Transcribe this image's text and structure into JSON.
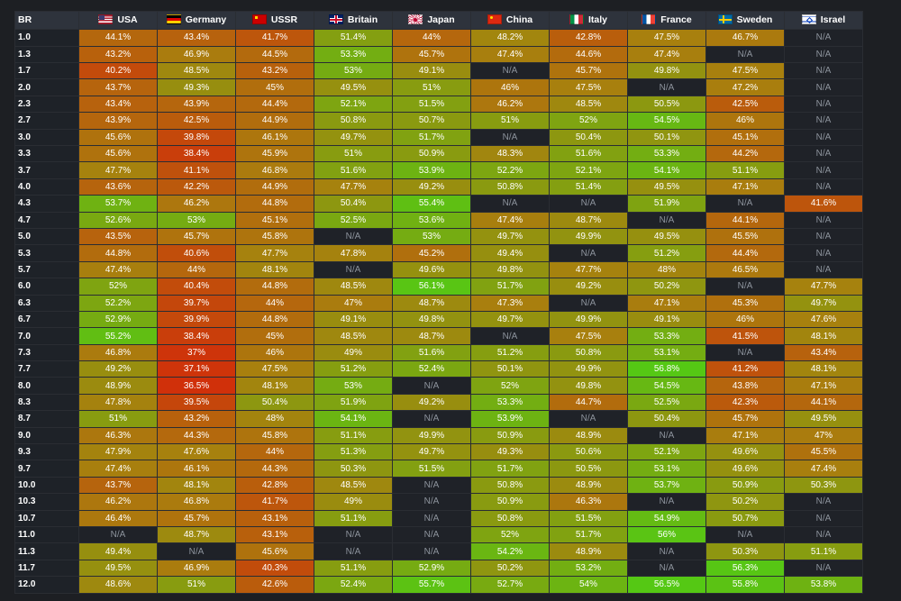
{
  "header": {
    "br_label": "BR",
    "countries": [
      {
        "name": "USA",
        "flag": "usa-flag-icon"
      },
      {
        "name": "Germany",
        "flag": "germany-flag-icon"
      },
      {
        "name": "USSR",
        "flag": "ussr-flag-icon"
      },
      {
        "name": "Britain",
        "flag": "britain-flag-icon"
      },
      {
        "name": "Japan",
        "flag": "japan-flag-icon"
      },
      {
        "name": "China",
        "flag": "china-flag-icon"
      },
      {
        "name": "Italy",
        "flag": "italy-flag-icon"
      },
      {
        "name": "France",
        "flag": "france-flag-icon"
      },
      {
        "name": "Sweden",
        "flag": "sweden-flag-icon"
      },
      {
        "name": "Israel",
        "flag": "israel-flag-icon"
      }
    ]
  },
  "colors": {
    "background": "#1d1f23",
    "na_cell": "#1f2228",
    "low": "#d0300a",
    "mid": "#a8800e",
    "high": "#55c814"
  },
  "rows": [
    {
      "br": "1.0",
      "values": [
        "44.1%",
        "43.4%",
        "41.7%",
        "51.4%",
        "44%",
        "48.2%",
        "42.8%",
        "47.5%",
        "46.7%",
        "N/A"
      ]
    },
    {
      "br": "1.3",
      "values": [
        "43.2%",
        "46.9%",
        "44.5%",
        "53.3%",
        "45.7%",
        "47.4%",
        "44.6%",
        "47.4%",
        "N/A",
        "N/A"
      ]
    },
    {
      "br": "1.7",
      "values": [
        "40.2%",
        "48.5%",
        "43.2%",
        "53%",
        "49.1%",
        "N/A",
        "45.7%",
        "49.8%",
        "47.5%",
        "N/A"
      ]
    },
    {
      "br": "2.0",
      "values": [
        "43.7%",
        "49.3%",
        "45%",
        "49.5%",
        "51%",
        "46%",
        "47.5%",
        "N/A",
        "47.2%",
        "N/A"
      ]
    },
    {
      "br": "2.3",
      "values": [
        "43.4%",
        "43.9%",
        "44.4%",
        "52.1%",
        "51.5%",
        "46.2%",
        "48.5%",
        "50.5%",
        "42.5%",
        "N/A"
      ]
    },
    {
      "br": "2.7",
      "values": [
        "43.9%",
        "42.5%",
        "44.9%",
        "50.8%",
        "50.7%",
        "51%",
        "52%",
        "54.5%",
        "46%",
        "N/A"
      ]
    },
    {
      "br": "3.0",
      "values": [
        "45.6%",
        "39.8%",
        "46.1%",
        "49.7%",
        "51.7%",
        "N/A",
        "50.4%",
        "50.1%",
        "45.1%",
        "N/A"
      ]
    },
    {
      "br": "3.3",
      "values": [
        "45.6%",
        "38.4%",
        "45.9%",
        "51%",
        "50.9%",
        "48.3%",
        "51.6%",
        "53.3%",
        "44.2%",
        "N/A"
      ]
    },
    {
      "br": "3.7",
      "values": [
        "47.7%",
        "41.1%",
        "46.8%",
        "51.6%",
        "53.9%",
        "52.2%",
        "52.1%",
        "54.1%",
        "51.1%",
        "N/A"
      ]
    },
    {
      "br": "4.0",
      "values": [
        "43.6%",
        "42.2%",
        "44.9%",
        "47.7%",
        "49.2%",
        "50.8%",
        "51.4%",
        "49.5%",
        "47.1%",
        "N/A"
      ]
    },
    {
      "br": "4.3",
      "values": [
        "53.7%",
        "46.2%",
        "44.8%",
        "50.4%",
        "55.4%",
        "N/A",
        "N/A",
        "51.9%",
        "N/A",
        "41.6%"
      ]
    },
    {
      "br": "4.7",
      "values": [
        "52.6%",
        "53%",
        "45.1%",
        "52.5%",
        "53.6%",
        "47.4%",
        "48.7%",
        "N/A",
        "44.1%",
        "N/A"
      ]
    },
    {
      "br": "5.0",
      "values": [
        "43.5%",
        "45.7%",
        "45.8%",
        "N/A",
        "53%",
        "49.7%",
        "49.9%",
        "49.5%",
        "45.5%",
        "N/A"
      ]
    },
    {
      "br": "5.3",
      "values": [
        "44.8%",
        "40.6%",
        "47.7%",
        "47.8%",
        "45.2%",
        "49.4%",
        "N/A",
        "51.2%",
        "44.4%",
        "N/A"
      ]
    },
    {
      "br": "5.7",
      "values": [
        "47.4%",
        "44%",
        "48.1%",
        "N/A",
        "49.6%",
        "49.8%",
        "47.7%",
        "48%",
        "46.5%",
        "N/A"
      ]
    },
    {
      "br": "6.0",
      "values": [
        "52%",
        "40.4%",
        "44.8%",
        "48.5%",
        "56.1%",
        "51.7%",
        "49.2%",
        "50.2%",
        "N/A",
        "47.7%"
      ]
    },
    {
      "br": "6.3",
      "values": [
        "52.2%",
        "39.7%",
        "44%",
        "47%",
        "48.7%",
        "47.3%",
        "N/A",
        "47.1%",
        "45.3%",
        "49.7%"
      ]
    },
    {
      "br": "6.7",
      "values": [
        "52.9%",
        "39.9%",
        "44.8%",
        "49.1%",
        "49.8%",
        "49.7%",
        "49.9%",
        "49.1%",
        "46%",
        "47.6%"
      ]
    },
    {
      "br": "7.0",
      "values": [
        "55.2%",
        "38.4%",
        "45%",
        "48.5%",
        "48.7%",
        "N/A",
        "47.5%",
        "53.3%",
        "41.5%",
        "48.1%"
      ]
    },
    {
      "br": "7.3",
      "values": [
        "46.8%",
        "37%",
        "46%",
        "49%",
        "51.6%",
        "51.2%",
        "50.8%",
        "53.1%",
        "N/A",
        "43.4%"
      ]
    },
    {
      "br": "7.7",
      "values": [
        "49.2%",
        "37.1%",
        "47.5%",
        "51.2%",
        "52.4%",
        "50.1%",
        "49.9%",
        "56.8%",
        "41.2%",
        "48.1%"
      ]
    },
    {
      "br": "8.0",
      "values": [
        "48.9%",
        "36.5%",
        "48.1%",
        "53%",
        "N/A",
        "52%",
        "49.8%",
        "54.5%",
        "43.8%",
        "47.1%"
      ]
    },
    {
      "br": "8.3",
      "values": [
        "47.8%",
        "39.5%",
        "50.4%",
        "51.9%",
        "49.2%",
        "53.3%",
        "44.7%",
        "52.5%",
        "42.3%",
        "44.1%"
      ]
    },
    {
      "br": "8.7",
      "values": [
        "51%",
        "43.2%",
        "48%",
        "54.1%",
        "N/A",
        "53.9%",
        "N/A",
        "50.4%",
        "45.7%",
        "49.5%"
      ]
    },
    {
      "br": "9.0",
      "values": [
        "46.3%",
        "44.3%",
        "45.8%",
        "51.1%",
        "49.9%",
        "50.9%",
        "48.9%",
        "N/A",
        "47.1%",
        "47%"
      ]
    },
    {
      "br": "9.3",
      "values": [
        "47.9%",
        "47.6%",
        "44%",
        "51.3%",
        "49.7%",
        "49.3%",
        "50.6%",
        "52.1%",
        "49.6%",
        "45.5%"
      ]
    },
    {
      "br": "9.7",
      "values": [
        "47.4%",
        "46.1%",
        "44.3%",
        "50.3%",
        "51.5%",
        "51.7%",
        "50.5%",
        "53.1%",
        "49.6%",
        "47.4%"
      ]
    },
    {
      "br": "10.0",
      "values": [
        "43.7%",
        "48.1%",
        "42.8%",
        "48.5%",
        "N/A",
        "50.8%",
        "48.9%",
        "53.7%",
        "50.9%",
        "50.3%"
      ]
    },
    {
      "br": "10.3",
      "values": [
        "46.2%",
        "46.8%",
        "41.7%",
        "49%",
        "N/A",
        "50.9%",
        "46.3%",
        "N/A",
        "50.2%",
        "N/A"
      ]
    },
    {
      "br": "10.7",
      "values": [
        "46.4%",
        "45.7%",
        "43.1%",
        "51.1%",
        "N/A",
        "50.8%",
        "51.5%",
        "54.9%",
        "50.7%",
        "N/A"
      ]
    },
    {
      "br": "11.0",
      "values": [
        "N/A",
        "48.7%",
        "43.1%",
        "N/A",
        "N/A",
        "52%",
        "51.7%",
        "56%",
        "N/A",
        "N/A"
      ]
    },
    {
      "br": "11.3",
      "values": [
        "49.4%",
        "N/A",
        "45.6%",
        "N/A",
        "N/A",
        "54.2%",
        "48.9%",
        "N/A",
        "50.3%",
        "51.1%"
      ]
    },
    {
      "br": "11.7",
      "values": [
        "49.5%",
        "46.9%",
        "40.3%",
        "51.1%",
        "52.9%",
        "50.2%",
        "53.2%",
        "N/A",
        "56.3%",
        "N/A"
      ]
    },
    {
      "br": "12.0",
      "values": [
        "48.6%",
        "51%",
        "42.6%",
        "52.4%",
        "55.7%",
        "52.7%",
        "54%",
        "56.5%",
        "55.8%",
        "53.8%"
      ]
    }
  ]
}
